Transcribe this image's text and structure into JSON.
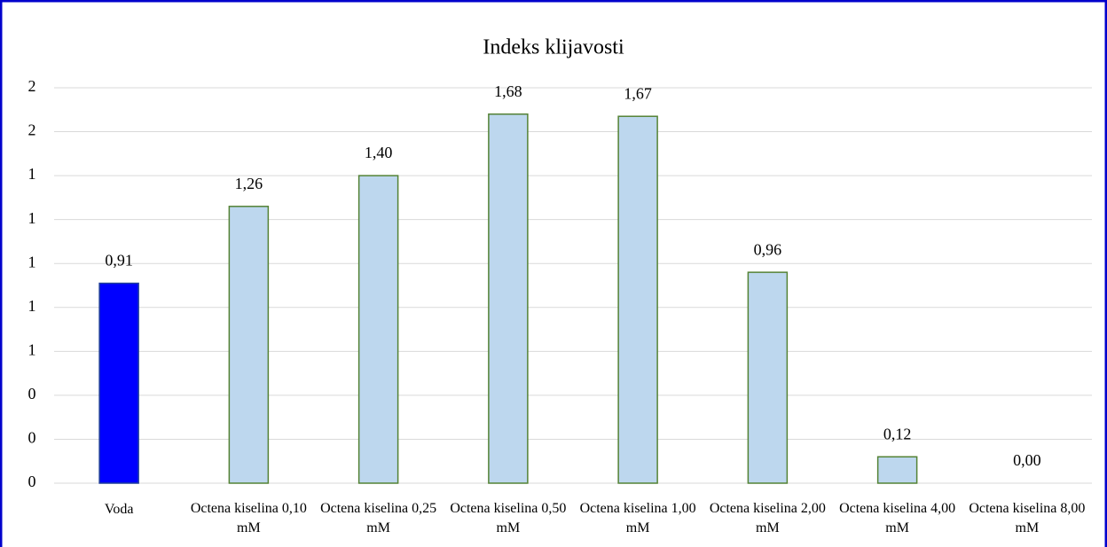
{
  "chart_data": {
    "type": "bar",
    "title": "Indeks klijavosti",
    "categories": [
      "Voda",
      "Octena kiselina 0,10 mM",
      "Octena kiselina 0,25 mM",
      "Octena kiselina 0,50 mM",
      "Octena kiselina 1,00 mM",
      "Octena kiselina 2,00 mM",
      "Octena kiselina 4,00 mM",
      "Octena kiselina 8,00 mM"
    ],
    "values": [
      0.91,
      1.26,
      1.4,
      1.68,
      1.67,
      0.96,
      0.12,
      0.0
    ],
    "value_labels": [
      "0,91",
      "1,26",
      "1,40",
      "1,68",
      "1,67",
      "0,96",
      "0,12",
      "0,00"
    ],
    "colors": [
      "#0000ff",
      "#bdd7ee",
      "#bdd7ee",
      "#bdd7ee",
      "#bdd7ee",
      "#bdd7ee",
      "#bdd7ee",
      "#bdd7ee"
    ],
    "ylim": [
      0,
      1.8
    ],
    "yticks": [
      0,
      {
        "value": 0.2,
        "label": "0"
      },
      {
        "value": 0.4,
        "label": "0"
      },
      {
        "value": 0.6,
        "label": "1"
      },
      {
        "value": 0.8,
        "label": "1"
      },
      {
        "value": 1.0,
        "label": "1"
      },
      {
        "value": 1.2,
        "label": "1"
      },
      {
        "value": 1.4,
        "label": "1"
      },
      {
        "value": 1.6,
        "label": "2"
      },
      {
        "value": 1.8,
        "label": "2"
      }
    ],
    "grid": true
  }
}
